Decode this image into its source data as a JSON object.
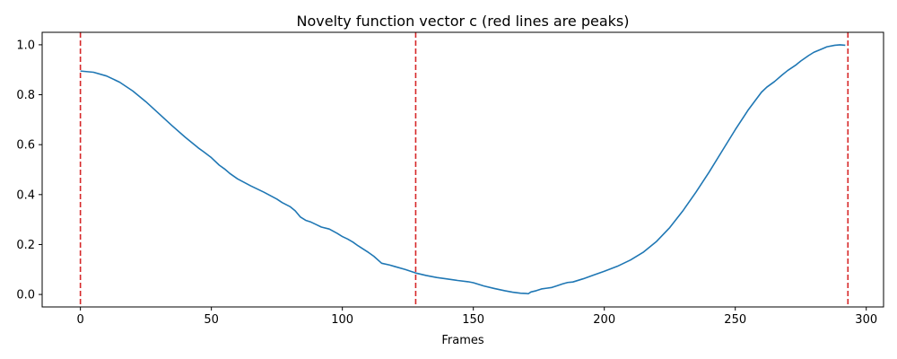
{
  "chart_data": {
    "type": "line",
    "title": "Novelty function vector c (red lines are peaks)",
    "xlabel": "Frames",
    "ylabel": "",
    "xlim": [
      -14.6,
      306.6
    ],
    "ylim": [
      -0.05,
      1.05
    ],
    "xticks": [
      0,
      50,
      100,
      150,
      200,
      250,
      300
    ],
    "yticks": [
      0.0,
      0.2,
      0.4,
      0.6,
      0.8,
      1.0
    ],
    "xtick_labels": [
      "0",
      "50",
      "100",
      "150",
      "200",
      "250",
      "300"
    ],
    "ytick_labels": [
      "0.0",
      "0.2",
      "0.4",
      "0.6",
      "0.8",
      "1.0"
    ],
    "grid": false,
    "legend": "none",
    "series": [
      {
        "color": "#1f77b4",
        "x": [
          0,
          5,
          10,
          15,
          20,
          25,
          30,
          35,
          40,
          45,
          47,
          50,
          53,
          55,
          57,
          60,
          65,
          70,
          75,
          77,
          80,
          82,
          84,
          86,
          88,
          90,
          92,
          95,
          98,
          100,
          102,
          104,
          106,
          110,
          112,
          115,
          118,
          120,
          124,
          128,
          132,
          136,
          140,
          144,
          148,
          150,
          154,
          158,
          162,
          165,
          168,
          170,
          171,
          172,
          174,
          176,
          178,
          180,
          182,
          184,
          186,
          188,
          192,
          196,
          200,
          205,
          210,
          215,
          220,
          225,
          230,
          235,
          240,
          245,
          250,
          255,
          260,
          262,
          265,
          268,
          270,
          273,
          275,
          278,
          280,
          283,
          285,
          288,
          290,
          292
        ],
        "y": [
          0.895,
          0.89,
          0.875,
          0.85,
          0.815,
          0.772,
          0.724,
          0.676,
          0.63,
          0.587,
          0.572,
          0.548,
          0.518,
          0.503,
          0.485,
          0.463,
          0.435,
          0.41,
          0.382,
          0.368,
          0.352,
          0.335,
          0.31,
          0.297,
          0.29,
          0.28,
          0.27,
          0.262,
          0.245,
          0.232,
          0.222,
          0.21,
          0.195,
          0.168,
          0.153,
          0.125,
          0.118,
          0.112,
          0.1,
          0.086,
          0.076,
          0.068,
          0.062,
          0.056,
          0.051,
          0.047,
          0.034,
          0.024,
          0.015,
          0.009,
          0.005,
          0.004,
          0.003,
          0.01,
          0.015,
          0.022,
          0.025,
          0.028,
          0.035,
          0.042,
          0.048,
          0.05,
          0.063,
          0.078,
          0.093,
          0.113,
          0.138,
          0.17,
          0.213,
          0.268,
          0.335,
          0.41,
          0.49,
          0.575,
          0.66,
          0.74,
          0.81,
          0.83,
          0.853,
          0.88,
          0.897,
          0.918,
          0.935,
          0.957,
          0.97,
          0.983,
          0.992,
          0.998,
          1.0,
          0.998
        ]
      }
    ],
    "peaks": {
      "color": "#d62728",
      "x": [
        0,
        128,
        293
      ]
    }
  }
}
